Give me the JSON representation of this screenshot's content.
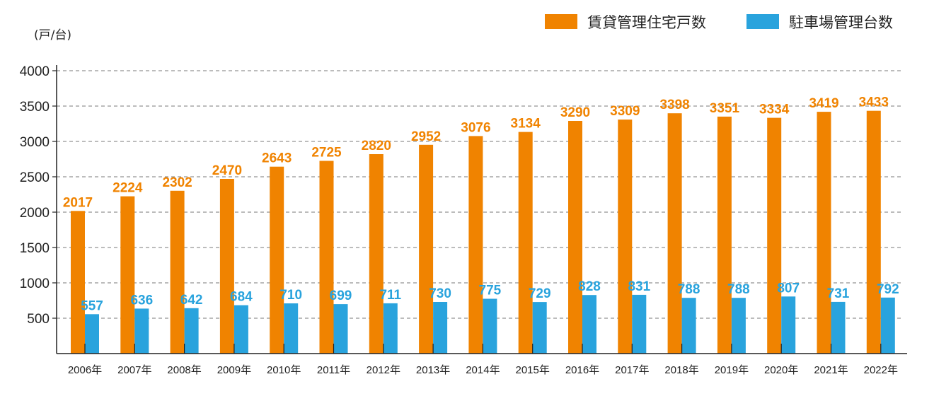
{
  "chart_data": {
    "type": "bar",
    "unit_label": "(戸/台)",
    "categories": [
      "2006年",
      "2007年",
      "2008年",
      "2009年",
      "2010年",
      "2011年",
      "2012年",
      "2013年",
      "2014年",
      "2015年",
      "2016年",
      "2017年",
      "2018年",
      "2019年",
      "2020年",
      "2021年",
      "2022年"
    ],
    "series": [
      {
        "name": "賃貸管理住宅戸数",
        "color": "#f08300",
        "values": [
          2017,
          2224,
          2302,
          2470,
          2643,
          2725,
          2820,
          2952,
          3076,
          3134,
          3290,
          3309,
          3398,
          3351,
          3334,
          3419,
          3433
        ]
      },
      {
        "name": "駐車場管理台数",
        "color": "#29a3dd",
        "values": [
          557,
          636,
          642,
          684,
          710,
          699,
          711,
          730,
          775,
          729,
          828,
          831,
          788,
          788,
          807,
          731,
          792
        ]
      }
    ],
    "ylim": [
      0,
      4000
    ],
    "yticks": [
      500,
      1000,
      1500,
      2000,
      2500,
      3000,
      3500,
      4000
    ],
    "grid": true,
    "legend_position": "top-right"
  }
}
